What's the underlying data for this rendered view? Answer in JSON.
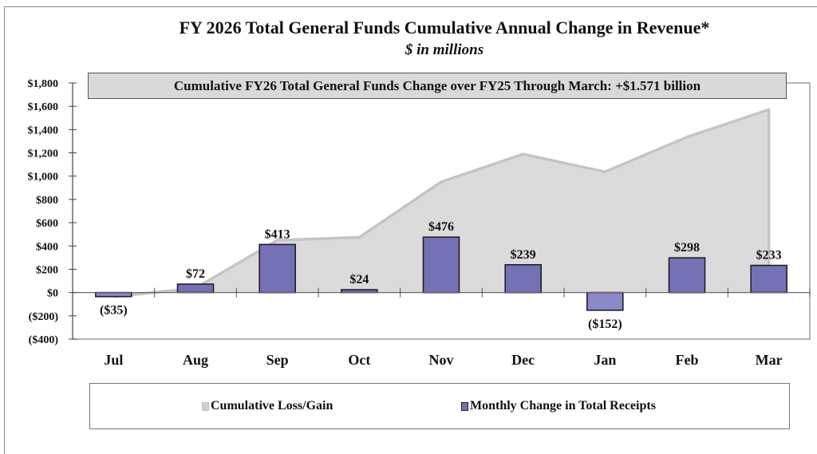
{
  "chart_data": {
    "type": "bar+area",
    "title": "FY 2026 Total General Funds Cumulative Annual Change in Revenue*",
    "subtitle": "$ in millions",
    "annotation": "Cumulative FY26 Total General Funds Change over FY25 Through March: +$1.571 billion",
    "categories": [
      "Jul",
      "Aug",
      "Sep",
      "Oct",
      "Nov",
      "Dec",
      "Jan",
      "Feb",
      "Mar"
    ],
    "series": [
      {
        "name": "Cumulative Loss/Gain",
        "type": "area",
        "color": "#d9d9d9",
        "line_color": "#c4c4c4",
        "values": [
          -35,
          37,
          450,
          474,
          950,
          1189,
          1037,
          1335,
          1571
        ]
      },
      {
        "name": "Monthly Change in Total Receipts",
        "type": "bar",
        "color": "#7472b4",
        "values": [
          -35,
          72,
          413,
          24,
          476,
          239,
          -152,
          298,
          233
        ],
        "data_labels": [
          "($35)",
          "$72",
          "$413",
          "$24",
          "$476",
          "$239",
          "($152)",
          "$298",
          "$233"
        ]
      }
    ],
    "ylim": [
      -400,
      1800
    ],
    "yticks": [
      1800,
      1600,
      1400,
      1200,
      1000,
      800,
      600,
      400,
      200,
      0,
      -200,
      -400
    ],
    "ytick_labels": [
      "$1,800",
      "$1,600",
      "$1,400",
      "$1,200",
      "$1,000",
      "$800",
      "$600",
      "$400",
      "$200",
      "$0",
      "($200)",
      "($400)"
    ],
    "xlabel": "",
    "ylabel": "",
    "grid": false,
    "legend": {
      "position": "bottom",
      "entries": [
        "Cumulative Loss/Gain",
        "Monthly Change in Total Receipts"
      ]
    }
  }
}
